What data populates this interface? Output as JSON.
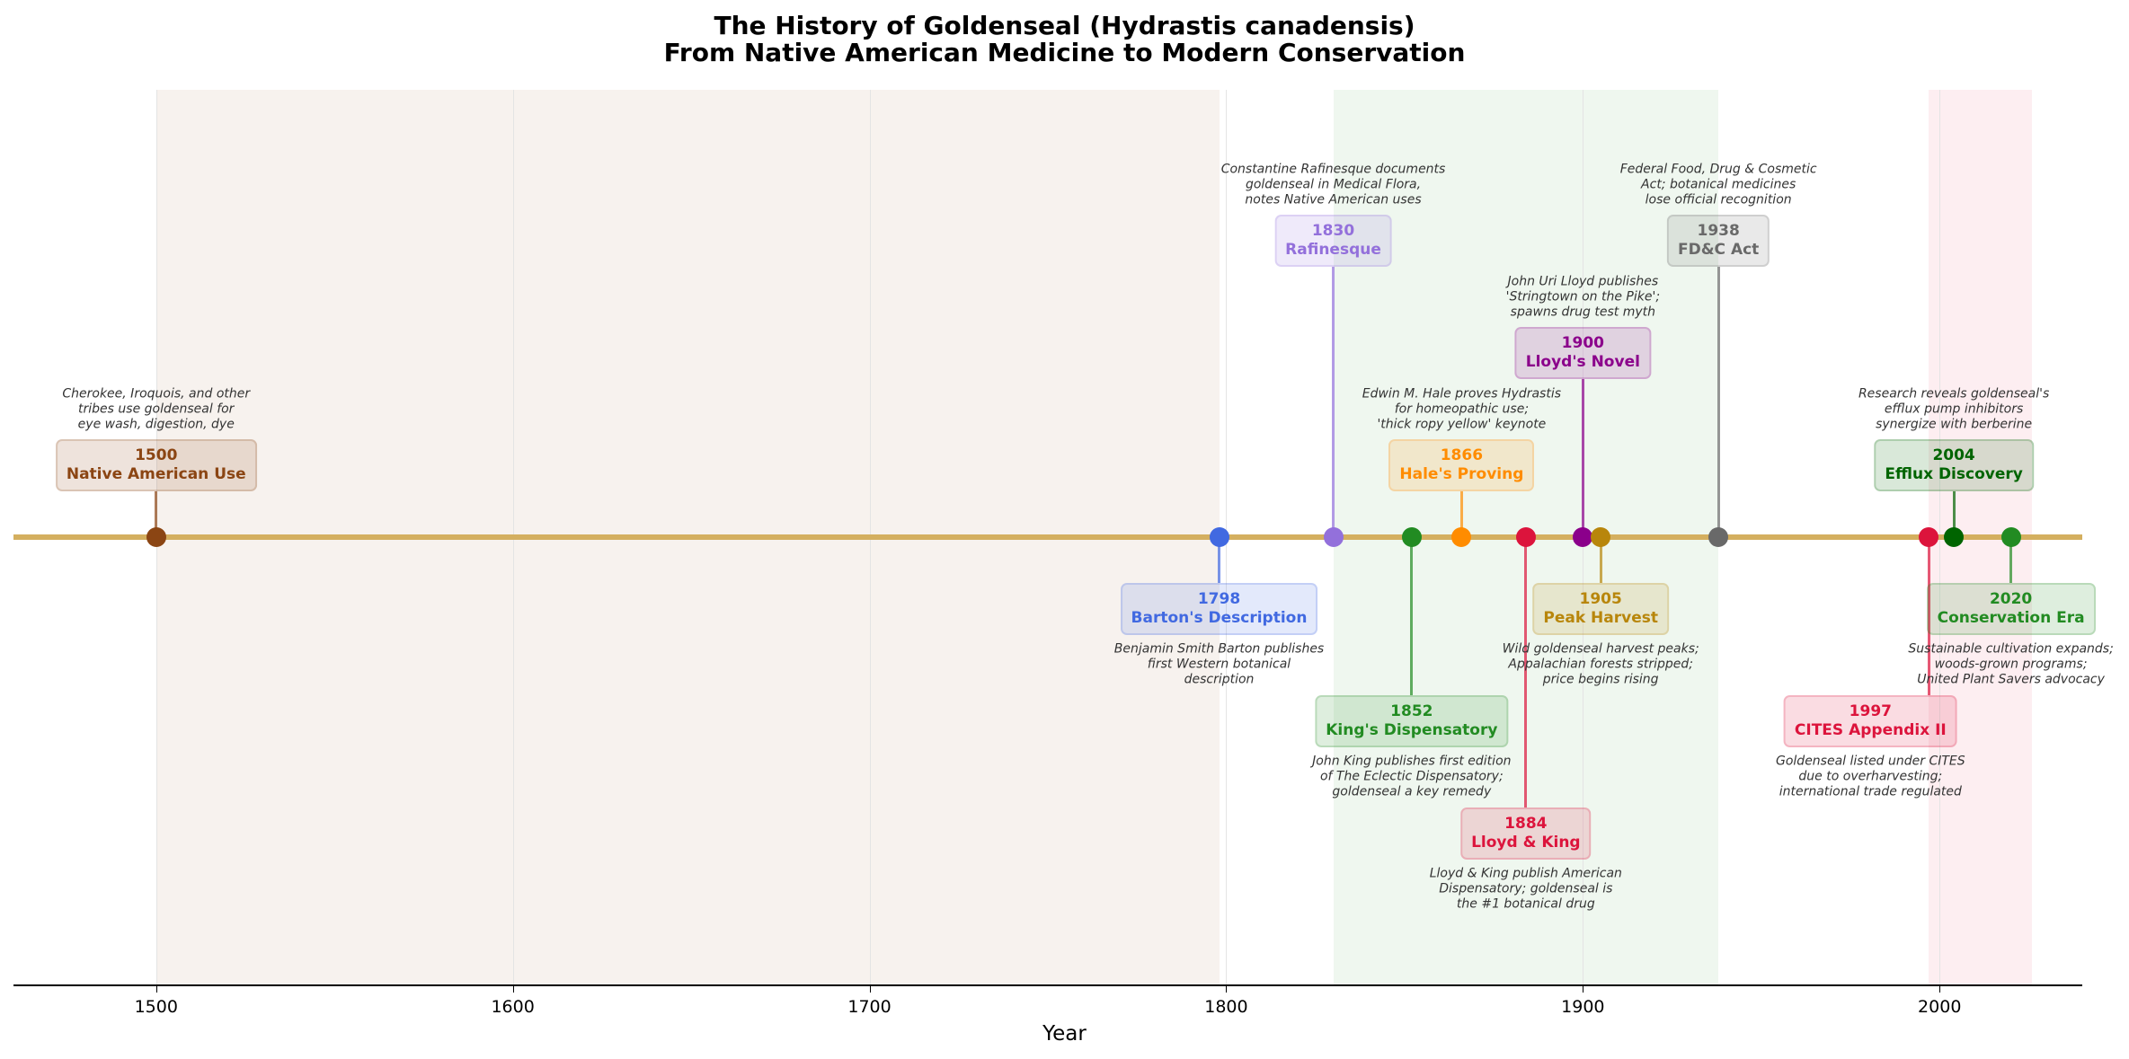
{
  "chart_data": {
    "type": "timeline",
    "title": "The History of Goldenseal (Hydrastis canadensis)",
    "subtitle": "From Native American Medicine to Modern Conservation",
    "xlabel": "Year",
    "xlim": [
      1460,
      2040
    ],
    "xticks": [
      1500,
      1600,
      1700,
      1800,
      1900,
      2000
    ],
    "grid": true,
    "eras": [
      {
        "start": 1500,
        "end": 1798,
        "color": "#8B4513"
      },
      {
        "start": 1830,
        "end": 1938,
        "color": "#228B22"
      },
      {
        "start": 1997,
        "end": 2026,
        "color": "#DC143C"
      }
    ],
    "events": [
      {
        "year": 1500,
        "label": "Native American Use",
        "description": "Cherokee, Iroquois, and other\ntribes use goldenseal for\neye wash, digestion, dye",
        "color": "#8B4513"
      },
      {
        "year": 1798,
        "label": "Barton's Description",
        "description": "Benjamin Smith Barton publishes\nfirst Western botanical\ndescription",
        "color": "#4169E1"
      },
      {
        "year": 1830,
        "label": "Rafinesque",
        "description": "Constantine Rafinesque documents\ngoldenseal in Medical Flora,\nnotes Native American uses",
        "color": "#9370DB"
      },
      {
        "year": 1852,
        "label": "King's Dispensatory",
        "description": "John King publishes first edition\nof The Eclectic Dispensatory;\ngoldenseal a key remedy",
        "color": "#228B22"
      },
      {
        "year": 1866,
        "label": "Hale's Proving",
        "description": "Edwin M. Hale proves Hydrastis\nfor homeopathic use;\n'thick ropy yellow' keynote",
        "color": "#FF8C00"
      },
      {
        "year": 1884,
        "label": "Lloyd & King",
        "description": "Lloyd & King publish American\nDispensatory; goldenseal is\nthe #1 botanical drug",
        "color": "#DC143C"
      },
      {
        "year": 1900,
        "label": "Lloyd's Novel",
        "description": "John Uri Lloyd publishes\n'Stringtown on the Pike';\nspawns drug test myth",
        "color": "#8B008B"
      },
      {
        "year": 1905,
        "label": "Peak Harvest",
        "description": "Wild goldenseal harvest peaks;\nAppalachian forests stripped;\nprice begins rising",
        "color": "#B8860B"
      },
      {
        "year": 1938,
        "label": "FD&C Act",
        "description": "Federal Food, Drug & Cosmetic\nAct; botanical medicines\nlose official recognition",
        "color": "#696969"
      },
      {
        "year": 1997,
        "label": "CITES Appendix II",
        "description": "Goldenseal listed under CITES\ndue to overharvesting;\ninternational trade regulated",
        "color": "#DC143C"
      },
      {
        "year": 2004,
        "label": "Efflux Discovery",
        "description": "Research reveals goldenseal's\nefflux pump inhibitors\nsynergize with berberine",
        "color": "#006400"
      },
      {
        "year": 2020,
        "label": "Conservation Era",
        "description": "Sustainable cultivation expands;\nwoods-grown programs;\nUnited Plant Savers advocacy",
        "color": "#228B22"
      }
    ],
    "timeline_color": "#D4AF5F"
  }
}
